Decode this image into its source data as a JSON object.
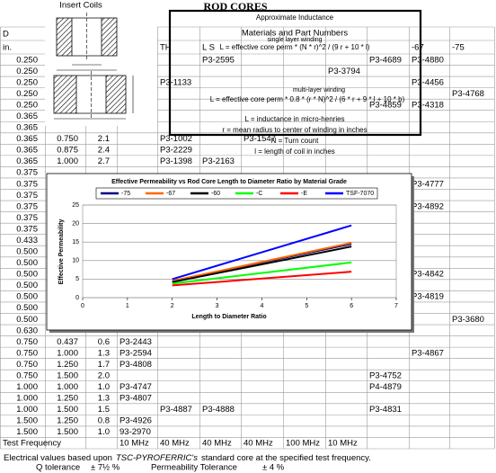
{
  "header": {
    "coil_title": "Insert Coils",
    "title": "ROD CORES"
  },
  "inductance_box": {
    "title": "Approximate Inductance",
    "subtitle": "Materials and Part Numbers",
    "single_layer": "single layer winding",
    "single_formula": "L = effective core perm * (N * r)^2 / (9 r + 10 * l)",
    "multi_layer": "multi-layer winding",
    "multi_formula": "L = effective core perm * 0.8 * (r * N)^2 / (6 * r + 9 * l + 10 * b)",
    "legend": [
      "L = inductance in micro-henries",
      "r = mean radius to center of winding in inches",
      "N = Turn count",
      "l = length of coil in inches"
    ]
  },
  "table": {
    "rows": [
      [
        "D",
        null,
        null,
        null,
        null,
        null,
        null,
        null,
        null,
        null,
        null,
        null
      ],
      [
        "in.",
        null,
        null,
        null,
        "TH",
        "L S",
        null,
        null,
        null,
        null,
        "-67",
        "-75"
      ],
      [
        "0.250",
        null,
        null,
        null,
        null,
        "P3-2595",
        null,
        null,
        null,
        "P3-4689",
        "P3-4880",
        null
      ],
      [
        "0.250",
        null,
        null,
        null,
        null,
        null,
        null,
        null,
        "P3-3794",
        null,
        null,
        null
      ],
      [
        "0.250",
        null,
        null,
        null,
        "P3-1133",
        null,
        null,
        null,
        null,
        null,
        "P3-4456",
        null
      ],
      [
        "0.250",
        null,
        null,
        null,
        null,
        null,
        null,
        null,
        null,
        null,
        null,
        "P3-4768"
      ],
      [
        "0.250",
        null,
        null,
        null,
        null,
        null,
        null,
        null,
        null,
        "P3-4859",
        "P3-4318",
        null
      ],
      [
        "0.365",
        null,
        null,
        null,
        null,
        null,
        null,
        null,
        null,
        null,
        null,
        null
      ],
      [
        "0.365",
        null,
        null,
        null,
        null,
        null,
        null,
        null,
        null,
        null,
        null,
        null
      ],
      [
        "0.365",
        "0.750",
        "2.1",
        null,
        "P3-1002",
        null,
        "P3-1547",
        null,
        null,
        null,
        null,
        null
      ],
      [
        "0.365",
        "0.875",
        "2.4",
        null,
        "P3-2229",
        null,
        null,
        null,
        null,
        null,
        null,
        null
      ],
      [
        "0.365",
        "1.000",
        "2.7",
        null,
        "P3-1398",
        "P3-2163",
        null,
        null,
        null,
        null,
        null,
        null
      ],
      [
        "0.375",
        null,
        null,
        null,
        null,
        null,
        null,
        null,
        null,
        null,
        null,
        null
      ],
      [
        "0.375",
        null,
        null,
        null,
        null,
        null,
        null,
        null,
        null,
        null,
        "P3-4777",
        null
      ],
      [
        "0.375",
        null,
        null,
        null,
        null,
        null,
        null,
        null,
        null,
        null,
        null,
        null
      ],
      [
        "0.375",
        null,
        null,
        null,
        null,
        null,
        null,
        null,
        null,
        null,
        "P3-4892",
        null
      ],
      [
        "0.375",
        null,
        null,
        null,
        null,
        null,
        null,
        null,
        null,
        null,
        null,
        null
      ],
      [
        "0.375",
        null,
        null,
        null,
        null,
        null,
        null,
        null,
        null,
        null,
        null,
        null
      ],
      [
        "0.433",
        null,
        null,
        null,
        null,
        null,
        null,
        null,
        null,
        null,
        null,
        null
      ],
      [
        "0.500",
        null,
        null,
        null,
        null,
        null,
        null,
        null,
        null,
        null,
        null,
        null
      ],
      [
        "0.500",
        null,
        null,
        null,
        null,
        null,
        null,
        null,
        null,
        null,
        null,
        null
      ],
      [
        "0.500",
        null,
        null,
        null,
        null,
        null,
        null,
        null,
        null,
        null,
        "P3-4842",
        null
      ],
      [
        "0.500",
        null,
        null,
        null,
        null,
        null,
        null,
        null,
        null,
        null,
        null,
        null
      ],
      [
        "0.500",
        null,
        null,
        null,
        null,
        null,
        null,
        null,
        null,
        null,
        "P3-4819",
        null
      ],
      [
        "0.500",
        null,
        null,
        null,
        null,
        null,
        null,
        null,
        null,
        null,
        null,
        null
      ],
      [
        "0.500",
        null,
        null,
        null,
        null,
        null,
        null,
        null,
        null,
        null,
        null,
        "P3-3680"
      ],
      [
        "0.630",
        null,
        null,
        null,
        null,
        null,
        null,
        null,
        null,
        null,
        null,
        null
      ],
      [
        "0.750",
        "0.437",
        "0.6",
        "P3-2443",
        null,
        null,
        null,
        null,
        null,
        null,
        null,
        null
      ],
      [
        "0.750",
        "1.000",
        "1.3",
        "P3-2594",
        null,
        null,
        null,
        null,
        null,
        null,
        "P3-4867",
        null
      ],
      [
        "0.750",
        "1.250",
        "1.7",
        "P3-4808",
        null,
        null,
        null,
        null,
        null,
        null,
        null,
        null
      ],
      [
        "0.750",
        "1.500",
        "2.0",
        null,
        null,
        null,
        null,
        null,
        null,
        "P3-4752",
        null,
        null
      ],
      [
        "1.000",
        "1.000",
        "1.0",
        "P3-4747",
        null,
        null,
        null,
        null,
        null,
        "P4-4879",
        null,
        null
      ],
      [
        "1.000",
        "1.250",
        "1.3",
        "P3-4807",
        null,
        null,
        null,
        null,
        null,
        null,
        null,
        null
      ],
      [
        "1.000",
        "1.500",
        "1.5",
        null,
        "P3-4887",
        "P3-4888",
        null,
        null,
        null,
        "P3-4831",
        null,
        null
      ],
      [
        "1.500",
        "1.250",
        "0.8",
        "P3-4926",
        null,
        null,
        null,
        null,
        null,
        null,
        null,
        null
      ],
      [
        "1.500",
        "1.500",
        "1.0",
        "93-2970",
        null,
        null,
        null,
        null,
        null,
        null,
        null,
        null
      ],
      [
        "Test Frequency",
        null,
        null,
        "10 MHz",
        "40 MHz",
        "40 MHz",
        "40 MHz",
        "100 MHz",
        "10 MHz",
        null,
        null,
        null
      ]
    ]
  },
  "footer": {
    "note_start": "Electrical values based upon",
    "note_brand": "TSC-PYROFERRIC's",
    "note_end": "standard core at the specified test frequency.",
    "q_label": "Q tolerance",
    "q_value": "± 7½ %",
    "perm_label": "Permeability  Tolerance",
    "perm_value": "± 4 %"
  },
  "chart_data": {
    "type": "line",
    "title": "Effective Permeability vs Rod Core Length to Diameter Ratio by Material Grade",
    "x_label": "Length to Diameter Ratio",
    "y_label": "Effective Permeability",
    "x": [
      2,
      6
    ],
    "series": [
      {
        "name": "-75",
        "color": "#000080",
        "values": [
          4.5,
          14.5
        ]
      },
      {
        "name": "-67",
        "color": "#ff6600",
        "values": [
          4.5,
          14.8
        ]
      },
      {
        "name": "-60",
        "color": "#000000",
        "values": [
          4.2,
          13.8
        ]
      },
      {
        "name": "-C",
        "color": "#00ff00",
        "values": [
          3.8,
          9.5
        ]
      },
      {
        "name": "-E",
        "color": "#ff0000",
        "values": [
          3.3,
          7.0
        ]
      },
      {
        "name": "TSF-7070",
        "color": "#0000ff",
        "values": [
          5.0,
          19.5
        ]
      }
    ],
    "xlim": [
      0,
      7
    ],
    "xticks": [
      0,
      1,
      2,
      3,
      4,
      5,
      6,
      7
    ],
    "ylim": [
      0,
      25
    ],
    "yticks": [
      0,
      5,
      10,
      15,
      20,
      25
    ],
    "grid": true,
    "legend": "top"
  }
}
